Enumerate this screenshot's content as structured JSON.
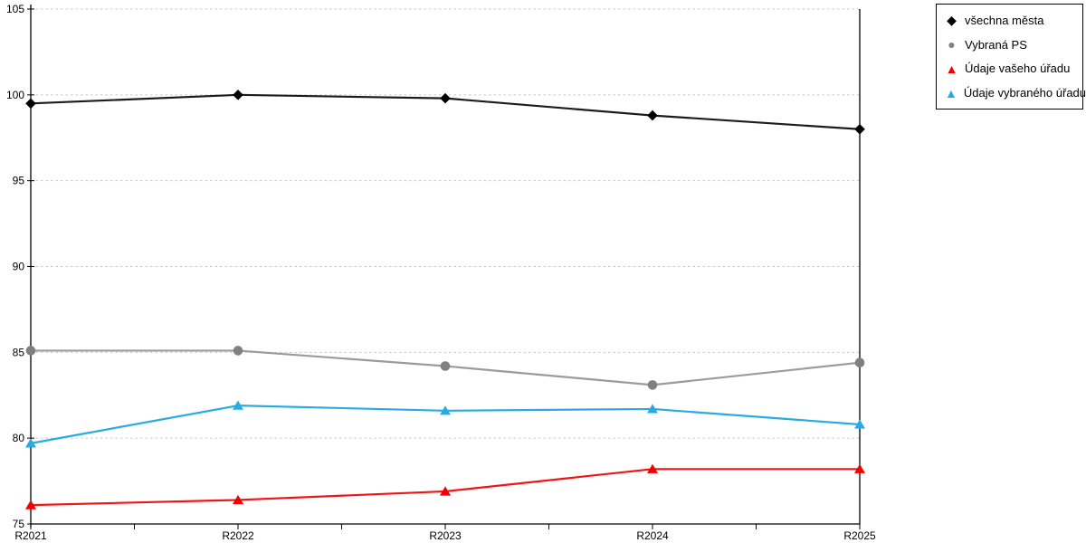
{
  "colors": {
    "background": "#ffffff",
    "grid": "#c8c8c8",
    "axis": "#000000",
    "text": "#000000"
  },
  "chart_data": {
    "type": "line",
    "title": "",
    "xlabel": "",
    "ylabel": "",
    "categories": [
      "R2021",
      "R2022",
      "R2023",
      "R2024",
      "R2025"
    ],
    "y_ticks": [
      75,
      80,
      85,
      90,
      95,
      100,
      105
    ],
    "ylim": [
      75,
      105
    ],
    "grid": "horizontal-dashed",
    "legend_position": "top-right",
    "series": [
      {
        "name": "všechna města",
        "marker": "diamond",
        "color": "#000000",
        "line_color": "#1c1c1c",
        "values": [
          99.5,
          100.0,
          99.8,
          98.8,
          98.0
        ]
      },
      {
        "name": "Vybraná PS",
        "marker": "circle",
        "color": "#808080",
        "line_color": "#9b9b9b",
        "values": [
          85.1,
          85.1,
          84.2,
          83.1,
          84.4
        ]
      },
      {
        "name": "Údaje vašeho úřadu",
        "marker": "triangle",
        "color": "#f40000",
        "line_color": "#f21414",
        "values": [
          76.1,
          76.4,
          76.9,
          78.2,
          78.2
        ]
      },
      {
        "name": "Údaje vybraného úřadu",
        "marker": "triangle",
        "color": "#29abe2",
        "line_color": "#29abe2",
        "values": [
          79.7,
          81.9,
          81.6,
          81.7,
          80.8
        ]
      }
    ]
  }
}
